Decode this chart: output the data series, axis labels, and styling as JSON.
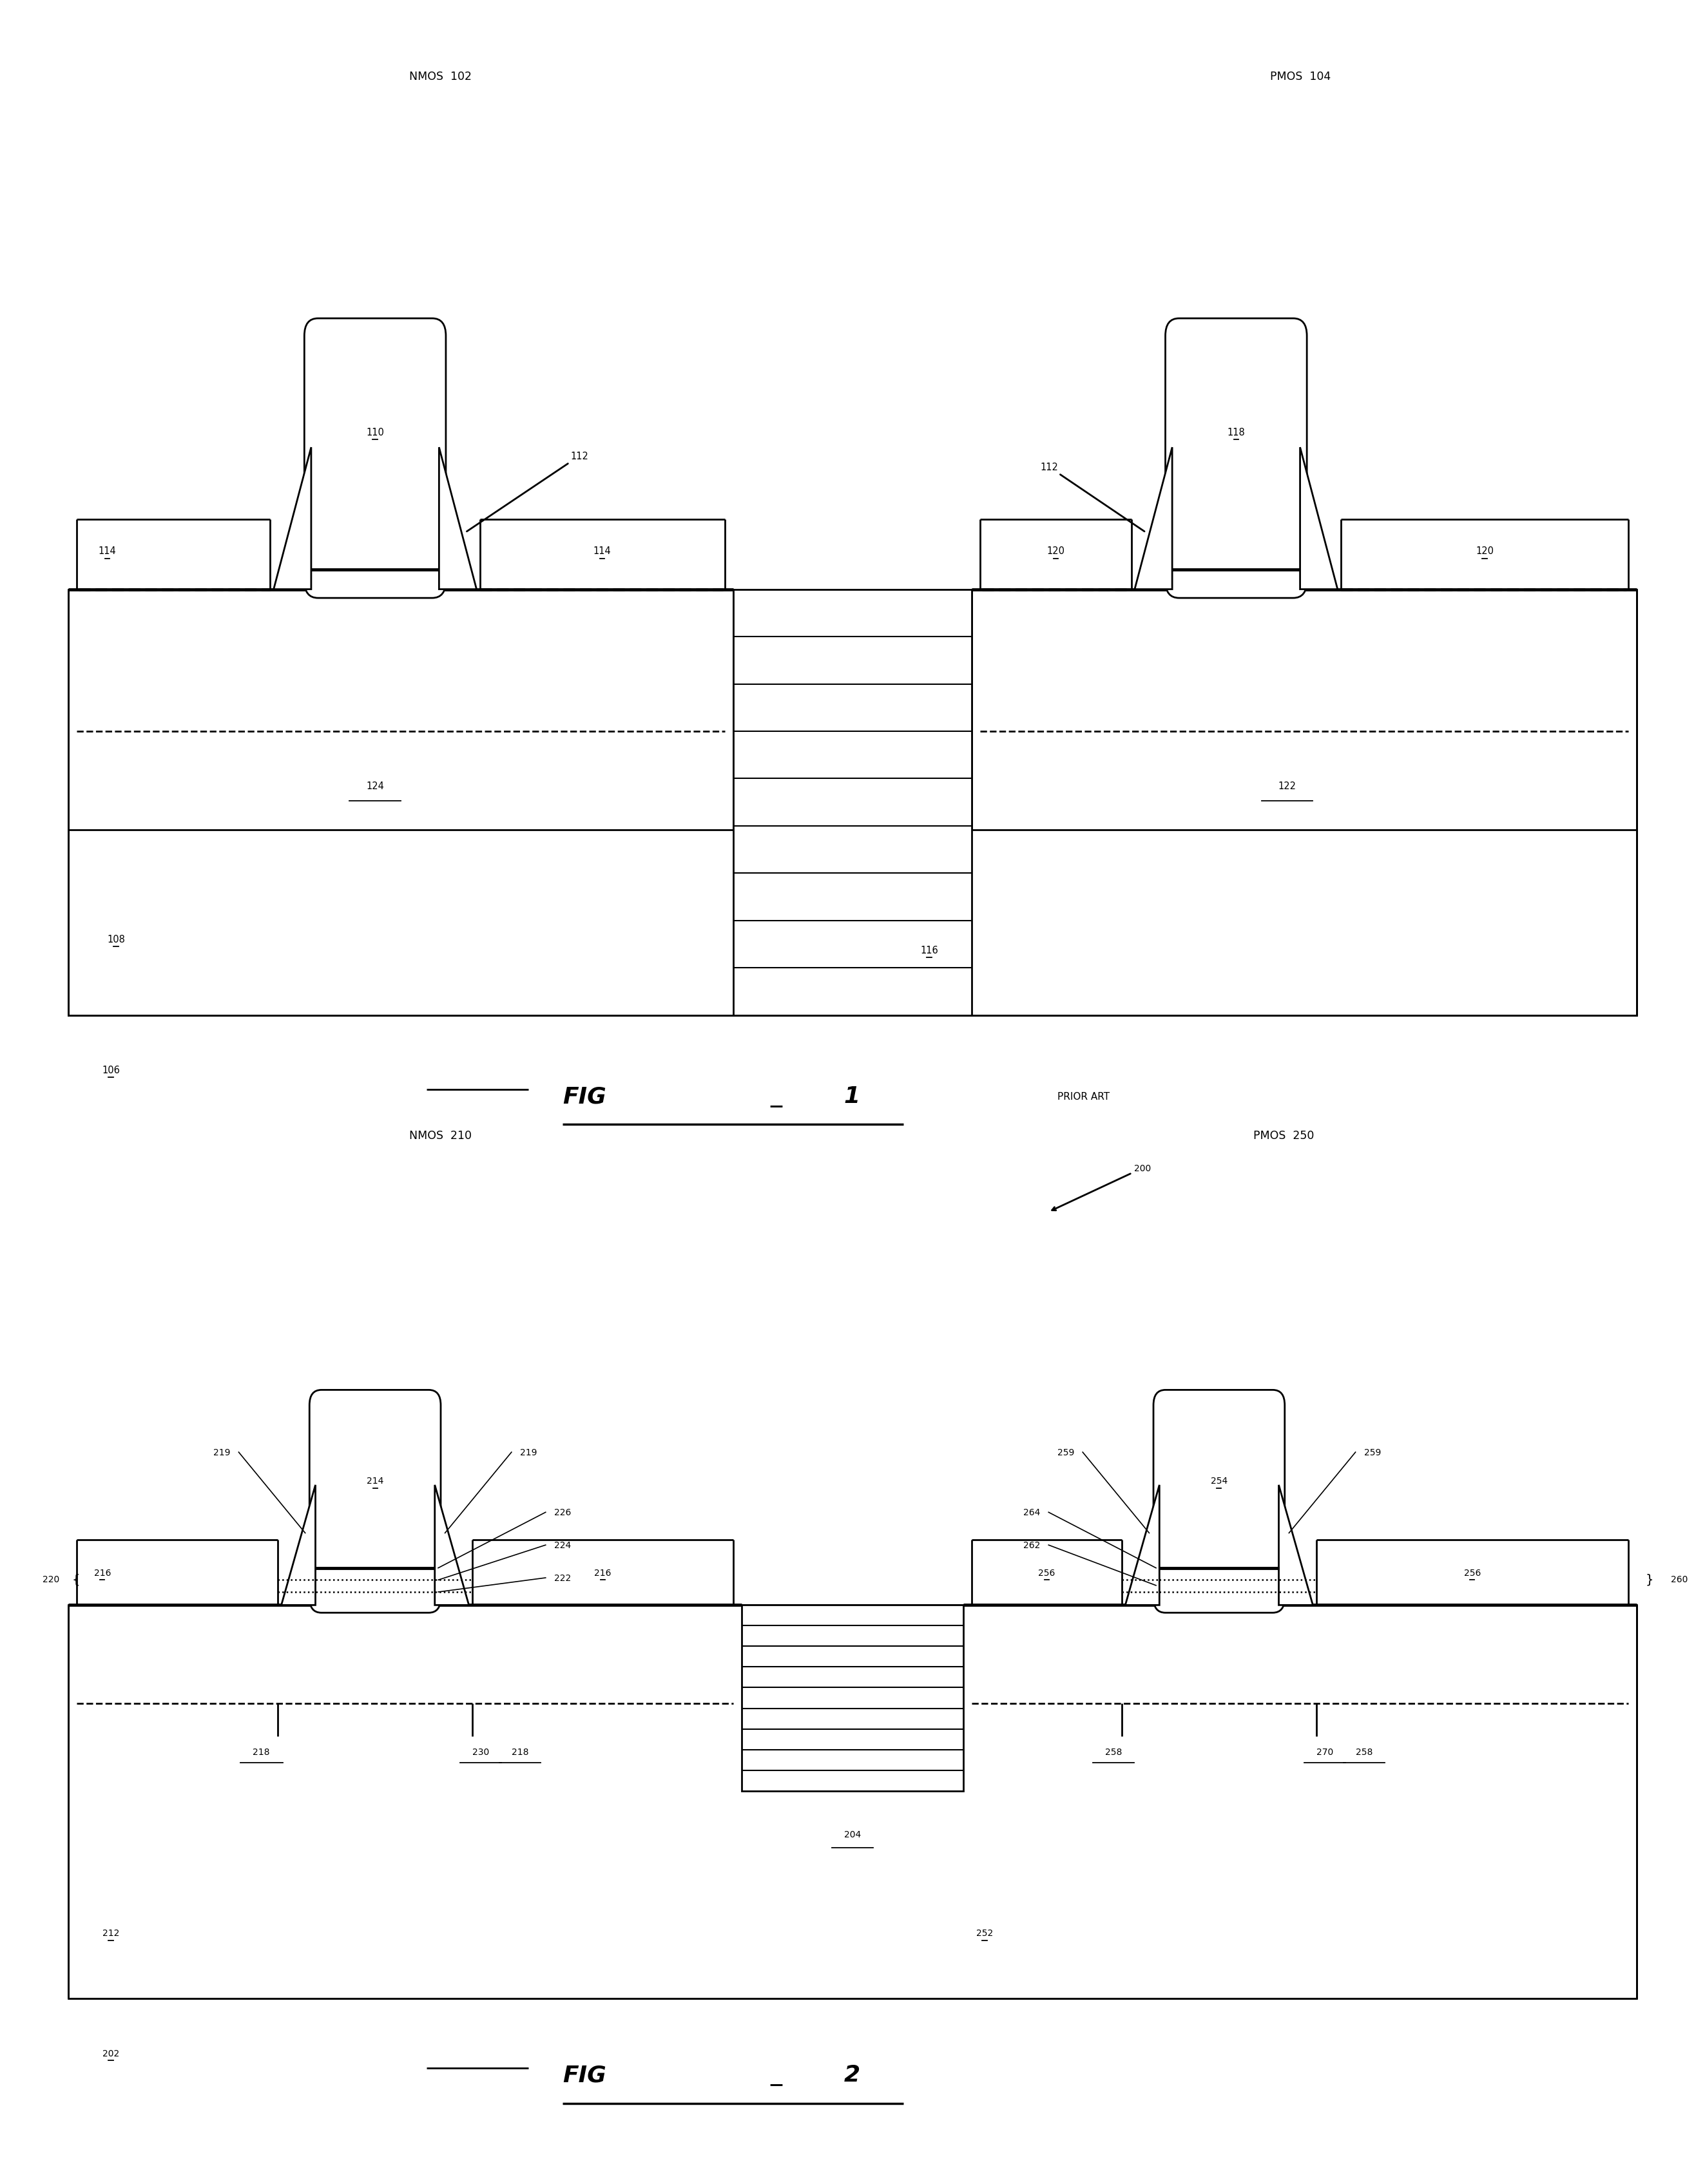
{
  "fig_width": 26.46,
  "fig_height": 33.91,
  "bg_color": "#ffffff",
  "lw": 2.0,
  "lw_thick": 3.5,
  "lw_thin": 1.2,
  "fig1": {
    "nmos_label": "NMOS  102",
    "pmos_label": "PMOS  104",
    "gate_n_label": "110",
    "gate_p_label": "118",
    "spacer_label": "112",
    "sd_nl_label": "114",
    "sd_nr_label": "114",
    "sd_pl_label": "120",
    "sd_pr_label": "120",
    "pwell_label": "108",
    "sti_label": "116",
    "sub_label": "106",
    "nwell_label": "124",
    "pwell2_label": "122",
    "prior_art": "PRIOR ART"
  },
  "fig2": {
    "nmos_label": "NMOS  210",
    "pmos_label": "PMOS  250",
    "ref200": "200",
    "gate_n_label": "214",
    "gate_p_label": "254",
    "spacer_nl_label": "219",
    "spacer_nr_label": "219",
    "spacer_pl_label": "259",
    "spacer_pr_label": "259",
    "dieln1_label": "226",
    "dieln2_label": "224",
    "dieln3_label": "222",
    "brace_n_label": "220",
    "brace_p_label": "260",
    "dielp1_label": "264",
    "dielp2_label": "262",
    "sd_nl_label": "216",
    "sd_nr_label": "216",
    "sd_pl_label": "256",
    "sd_pr_label": "256",
    "junc_nl_label": "218",
    "junc_nr_label": "218",
    "junc_center_label": "230",
    "junc_pl_label": "258",
    "junc_pr_label": "258",
    "junc_pc_label": "270",
    "nwell_n_label": "212",
    "nwell_p_label": "252",
    "sub_label": "202",
    "sti_label": "204"
  },
  "fig1_label": "FIG_1",
  "fig2_label": "FIG_2"
}
